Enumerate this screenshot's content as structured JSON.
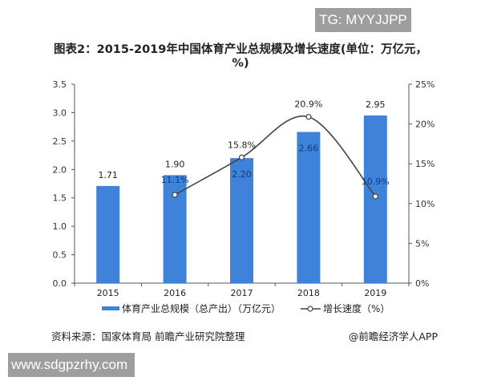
{
  "watermarks": {
    "top": "TG: MYYJJPP",
    "bottom": "www.sdgpzrhy.com"
  },
  "chart_data": {
    "type": "bar+line",
    "title": "图表2：2015-2019年中国体育产业总规模及增长速度(单位：万亿元，%)",
    "categories": [
      "2015",
      "2016",
      "2017",
      "2018",
      "2019"
    ],
    "series": [
      {
        "name": "体育产业总规模（总产出）（万亿元）",
        "type": "bar",
        "axis": "left",
        "values": [
          1.71,
          1.9,
          2.2,
          2.66,
          2.95
        ],
        "labels": [
          "1.71",
          "1.90",
          "2.20",
          "2.66",
          "2.95"
        ],
        "color": "#3f82d9"
      },
      {
        "name": "增长速度（%）",
        "type": "line",
        "axis": "right",
        "values": [
          null,
          11.1,
          15.8,
          20.9,
          10.9
        ],
        "labels": [
          "",
          "11.1%",
          "15.8%",
          "20.9%",
          "10.9%"
        ],
        "color": "#444444"
      }
    ],
    "y_left": {
      "range": [
        0,
        3.5
      ],
      "ticks": [
        "0.0",
        "0.5",
        "1.0",
        "1.5",
        "2.0",
        "2.5",
        "3.0",
        "3.5"
      ]
    },
    "y_right": {
      "range": [
        0,
        25
      ],
      "ticks": [
        "0%",
        "5%",
        "10%",
        "15%",
        "20%",
        "25%"
      ]
    },
    "grid": false,
    "legend_placement": "bottom"
  },
  "footer": {
    "source": "资料来源：国家体育局 前瞻产业研究院整理",
    "credit": "@前瞻经济学人APP"
  }
}
